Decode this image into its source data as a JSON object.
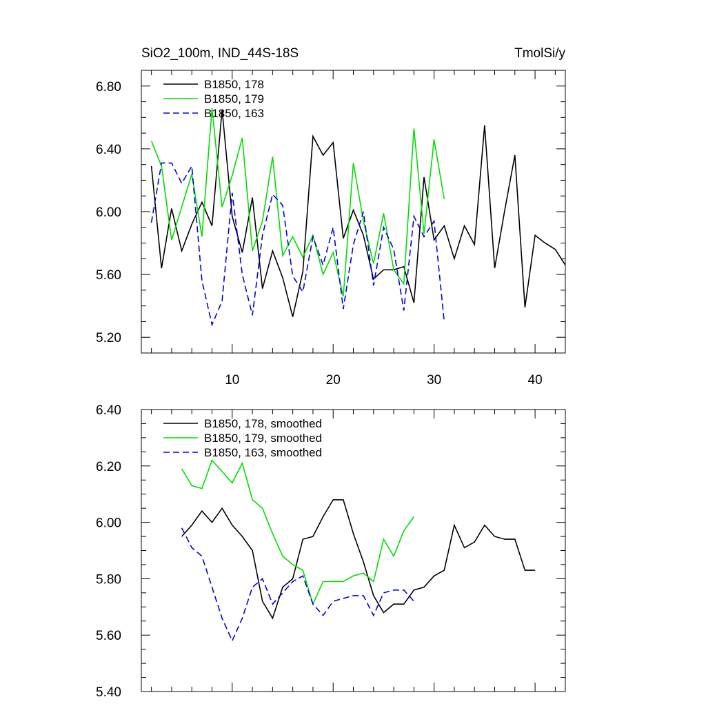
{
  "chart_data": [
    {
      "type": "line",
      "title": "SiO2_100m, IND_44S-18S",
      "units": "TmolSi/y",
      "xlabel": "",
      "ylabel": "",
      "xlim": [
        1,
        43
      ],
      "ylim": [
        5.1,
        6.9
      ],
      "xticks": [
        10,
        20,
        30,
        40
      ],
      "xtick_labels": [
        "10",
        "20",
        "30",
        "40"
      ],
      "yticks": [
        5.2,
        5.6,
        6.0,
        6.4,
        6.8
      ],
      "ytick_labels": [
        "5.20",
        "5.60",
        "6.00",
        "6.40",
        "6.80"
      ],
      "show_xtick_labels": true,
      "legend_position": "top-left",
      "series": [
        {
          "name": "B1850, 178",
          "color": "#000000",
          "dash": "solid",
          "x": [
            2,
            3,
            4,
            5,
            6,
            7,
            8,
            9,
            10,
            11,
            12,
            13,
            14,
            15,
            16,
            17,
            18,
            19,
            20,
            21,
            22,
            23,
            24,
            25,
            26,
            27,
            28,
            29,
            30,
            31,
            32,
            33,
            34,
            35,
            36,
            37,
            38,
            39,
            40,
            41,
            42,
            43
          ],
          "values": [
            6.29,
            5.64,
            6.02,
            5.75,
            5.92,
            6.06,
            5.91,
            6.65,
            5.97,
            5.74,
            6.09,
            5.51,
            5.75,
            5.58,
            5.33,
            5.62,
            6.48,
            6.36,
            6.44,
            5.83,
            6.01,
            5.85,
            5.57,
            5.63,
            5.63,
            5.65,
            5.42,
            6.22,
            5.82,
            5.91,
            5.7,
            5.91,
            5.79,
            6.55,
            5.64,
            6.01,
            6.36,
            5.39,
            5.85,
            5.8,
            5.76,
            5.66
          ]
        },
        {
          "name": "B1850, 179",
          "color": "#00dd00",
          "dash": "solid",
          "x": [
            2,
            3,
            4,
            5,
            6,
            7,
            8,
            9,
            10,
            11,
            12,
            13,
            14,
            15,
            16,
            17,
            18,
            19,
            20,
            21,
            22,
            23,
            24,
            25,
            26,
            27,
            28,
            29,
            30,
            31
          ],
          "values": [
            6.45,
            6.29,
            5.82,
            6.03,
            6.24,
            5.84,
            6.66,
            6.03,
            6.23,
            6.47,
            5.75,
            5.94,
            6.35,
            5.72,
            5.84,
            5.71,
            5.85,
            5.6,
            5.74,
            5.46,
            6.31,
            5.94,
            5.67,
            5.99,
            5.63,
            5.54,
            6.53,
            5.86,
            6.46,
            6.08
          ]
        },
        {
          "name": "B1850, 163",
          "color": "#0000dd",
          "dash": "dashed",
          "x": [
            2,
            3,
            4,
            5,
            6,
            7,
            8,
            9,
            10,
            11,
            12,
            13,
            14,
            15,
            16,
            17,
            18,
            19,
            20,
            21,
            22,
            23,
            24,
            25,
            26,
            27,
            28,
            29,
            30,
            31
          ],
          "values": [
            5.93,
            6.31,
            6.31,
            6.18,
            6.29,
            5.56,
            5.28,
            5.43,
            6.12,
            5.6,
            5.34,
            5.85,
            6.11,
            6.04,
            5.59,
            5.49,
            5.84,
            5.66,
            5.9,
            5.38,
            5.79,
            6.0,
            5.53,
            5.9,
            5.76,
            5.37,
            5.97,
            5.84,
            5.94,
            5.3
          ]
        }
      ]
    },
    {
      "type": "line",
      "title": "",
      "units": "",
      "xlabel": "",
      "ylabel": "",
      "xlim": [
        1,
        43
      ],
      "ylim": [
        5.4,
        6.4
      ],
      "xticks": [
        10,
        20,
        30,
        40
      ],
      "xtick_labels": [],
      "yticks": [
        5.4,
        5.6,
        5.8,
        6.0,
        6.2,
        6.4
      ],
      "ytick_labels": [
        "5.40",
        "5.60",
        "5.80",
        "6.00",
        "6.20",
        "6.40"
      ],
      "show_xtick_labels": false,
      "legend_position": "top-left",
      "series": [
        {
          "name": "B1850, 178, smoothed",
          "color": "#000000",
          "dash": "solid",
          "x": [
            5,
            6,
            7,
            8,
            9,
            10,
            11,
            12,
            13,
            14,
            15,
            16,
            17,
            18,
            19,
            20,
            21,
            22,
            23,
            24,
            25,
            26,
            27,
            28,
            29,
            30,
            31,
            32,
            33,
            34,
            35,
            36,
            37,
            38,
            39,
            40
          ],
          "values": [
            5.95,
            5.99,
            6.04,
            6.0,
            6.05,
            5.99,
            5.95,
            5.9,
            5.72,
            5.66,
            5.77,
            5.8,
            5.94,
            5.95,
            6.02,
            6.08,
            6.08,
            5.96,
            5.86,
            5.74,
            5.68,
            5.71,
            5.71,
            5.76,
            5.77,
            5.81,
            5.83,
            5.99,
            5.91,
            5.93,
            5.99,
            5.95,
            5.94,
            5.94,
            5.83,
            5.83
          ]
        },
        {
          "name": "B1850, 179, smoothed",
          "color": "#00dd00",
          "dash": "solid",
          "x": [
            5,
            6,
            7,
            8,
            9,
            10,
            11,
            12,
            13,
            14,
            15,
            16,
            17,
            18,
            19,
            20,
            21,
            22,
            23,
            24,
            25,
            26,
            27,
            28
          ],
          "values": [
            6.19,
            6.13,
            6.12,
            6.22,
            6.18,
            6.14,
            6.21,
            6.08,
            6.05,
            5.96,
            5.88,
            5.85,
            5.83,
            5.71,
            5.79,
            5.79,
            5.79,
            5.81,
            5.82,
            5.79,
            5.94,
            5.88,
            5.97,
            6.02
          ]
        },
        {
          "name": "B1850, 163, smoothed",
          "color": "#0000dd",
          "dash": "dashed",
          "x": [
            5,
            6,
            7,
            8,
            9,
            10,
            11,
            12,
            13,
            14,
            15,
            16,
            17,
            18,
            19,
            20,
            21,
            22,
            23,
            24,
            25,
            26,
            27,
            28
          ],
          "values": [
            5.98,
            5.91,
            5.88,
            5.77,
            5.66,
            5.58,
            5.66,
            5.77,
            5.8,
            5.71,
            5.75,
            5.79,
            5.81,
            5.71,
            5.67,
            5.72,
            5.73,
            5.74,
            5.74,
            5.67,
            5.75,
            5.76,
            5.76,
            5.72
          ]
        }
      ]
    }
  ]
}
